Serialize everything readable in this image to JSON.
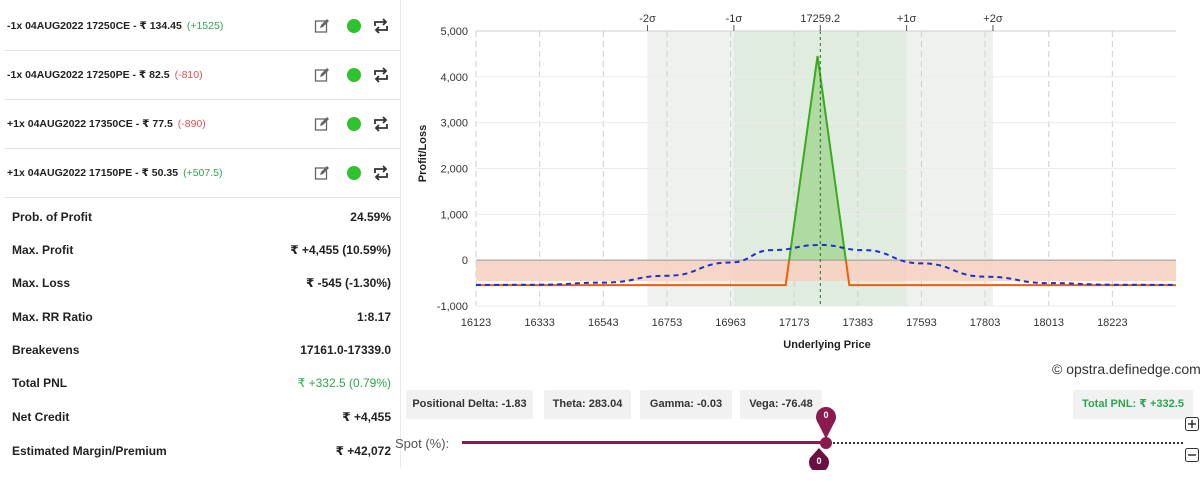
{
  "legs": [
    {
      "text": "-1x  04AUG2022  17250CE  - ₹ 134.45",
      "pnl": "(+1525)",
      "pnl_sign": "pos"
    },
    {
      "text": "-1x  04AUG2022  17250PE  - ₹ 82.5",
      "pnl": "(-810)",
      "pnl_sign": "neg"
    },
    {
      "text": "+1x  04AUG2022  17350CE  - ₹ 77.5",
      "pnl": "(-890)",
      "pnl_sign": "neg"
    },
    {
      "text": "+1x  04AUG2022  17150PE  - ₹ 50.35",
      "pnl": "(+507.5)",
      "pnl_sign": "pos"
    }
  ],
  "leg_icons": [
    "edit-icon",
    "status-dot-icon",
    "repeat-icon"
  ],
  "stats": [
    {
      "label": "Prob. of Profit",
      "value": "24.59%"
    },
    {
      "label": "Max. Profit",
      "value": "₹ +4,455 (10.59%)"
    },
    {
      "label": "Max. Loss",
      "value": "₹ -545 (-1.30%)"
    },
    {
      "label": "Max. RR Ratio",
      "value": "1:8.17"
    },
    {
      "label": "Breakevens",
      "value": "17161.0-17339.0"
    },
    {
      "label": "Total PNL",
      "value": "₹ +332.5 (0.79%)",
      "green": true
    },
    {
      "label": "Net Credit",
      "value": "₹ +4,455"
    },
    {
      "label": "Estimated Margin/Premium",
      "value": "₹ +42,072"
    }
  ],
  "chart_data": {
    "type": "line",
    "xlabel": "Underlying Price",
    "ylabel": "Profit/Loss",
    "xlim": [
      16123,
      18433
    ],
    "ylim": [
      -1000,
      5000
    ],
    "x_ticks": [
      16123,
      16333,
      16543,
      16753,
      16963,
      17173,
      17383,
      17593,
      17803,
      18013,
      18223
    ],
    "y_ticks": [
      -1000,
      0,
      1000,
      2000,
      3000,
      4000,
      5000
    ],
    "y_tick_labels": [
      "-1,000",
      "0",
      "1,000",
      "2,000",
      "3,000",
      "4,000",
      "5,000"
    ],
    "top_axis": [
      {
        "label": "-2σ",
        "x": 16689
      },
      {
        "label": "-1σ",
        "x": 16974
      },
      {
        "label": "17259.2",
        "x": 17259.2
      },
      {
        "label": "+1σ",
        "x": 17544
      },
      {
        "label": "+2σ",
        "x": 17829
      }
    ],
    "spot": 17259.2,
    "series": [
      {
        "style": "solid",
        "x": [
          16123,
          17145,
          17250,
          17355,
          18433
        ],
        "y": [
          -545,
          -545,
          4455,
          -545,
          -545
        ]
      },
      {
        "style": "dashed",
        "x": [
          16123,
          16333,
          16543,
          16753,
          16963,
          17100,
          17259.2,
          17400,
          17593,
          17803,
          18013,
          18223,
          18433
        ],
        "y": [
          -540,
          -535,
          -490,
          -340,
          -50,
          220,
          332.5,
          220,
          -70,
          -360,
          -500,
          -535,
          -540
        ]
      }
    ],
    "colors": {
      "pnl_line_profit": "#3aaa1e",
      "pnl_line_loss": "#f25c05",
      "profit_fill": "#a6d896",
      "loss_fill": "#f6d3c2",
      "expected_line": "#1a2fd6",
      "sigma1_band": "#e1ece1",
      "sigma2_band": "#eef1ee"
    }
  },
  "credit": "© opstra.definedge.com",
  "greeks": [
    {
      "label": "Positional Delta: -1.83"
    },
    {
      "label": "Theta: 283.04"
    },
    {
      "label": "Gamma: -0.03"
    },
    {
      "label": "Vega: -76.48"
    }
  ],
  "total_pnl_badge": "Total PNL: ₹ +332.5",
  "spot_label": "Spot (%):",
  "spot_slider_value": "0",
  "spot_slider_value_bottom": "0"
}
